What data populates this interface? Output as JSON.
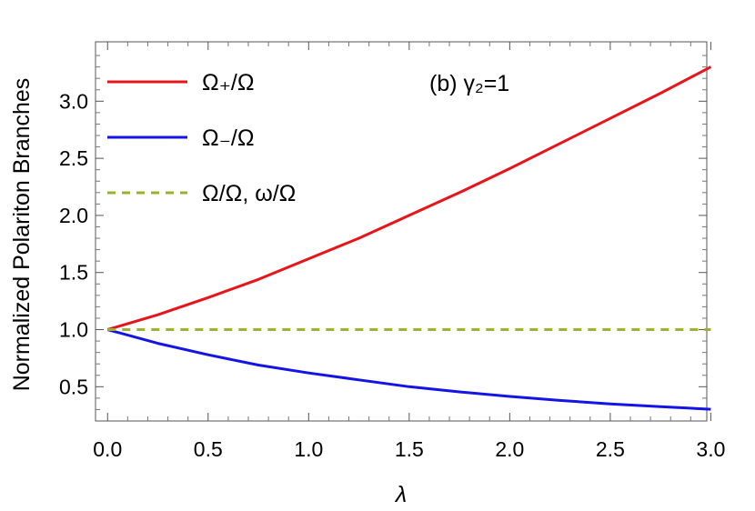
{
  "chart_data": {
    "type": "line",
    "xlabel": "λ",
    "ylabel": "Normalized Polariton Branches",
    "xlim": [
      -0.06,
      2.98
    ],
    "ylim": [
      0.2,
      3.52
    ],
    "x_ticks": [
      "0.0",
      "0.5",
      "1.0",
      "1.5",
      "2.0",
      "2.5",
      "3.0"
    ],
    "y_ticks": [
      "0.5",
      "1.0",
      "1.5",
      "2.0",
      "2.5",
      "3.0"
    ],
    "annotation": "(b) γ₂=1",
    "legend_position": "top-left",
    "series": [
      {
        "name": "Ω₊/Ω",
        "color": "#e8141a",
        "style": "solid",
        "x": [
          0,
          0.25,
          0.5,
          0.75,
          1.0,
          1.25,
          1.5,
          1.75,
          2.0,
          2.25,
          2.5,
          2.75,
          3.0
        ],
        "y": [
          1.0,
          1.13,
          1.28,
          1.44,
          1.62,
          1.8,
          2.0,
          2.2,
          2.41,
          2.63,
          2.85,
          3.07,
          3.3
        ]
      },
      {
        "name": "Ω₋/Ω",
        "color": "#1414e6",
        "style": "solid",
        "x": [
          0,
          0.25,
          0.5,
          0.75,
          1.0,
          1.25,
          1.5,
          1.75,
          2.0,
          2.25,
          2.5,
          2.75,
          3.0
        ],
        "y": [
          1.0,
          0.88,
          0.78,
          0.69,
          0.62,
          0.56,
          0.5,
          0.455,
          0.415,
          0.38,
          0.35,
          0.325,
          0.303
        ]
      },
      {
        "name": "Ω/Ω, ω/Ω",
        "color": "#9ab231",
        "style": "dashed",
        "x": [
          0,
          3.0
        ],
        "y": [
          1.0,
          1.0
        ]
      }
    ]
  }
}
